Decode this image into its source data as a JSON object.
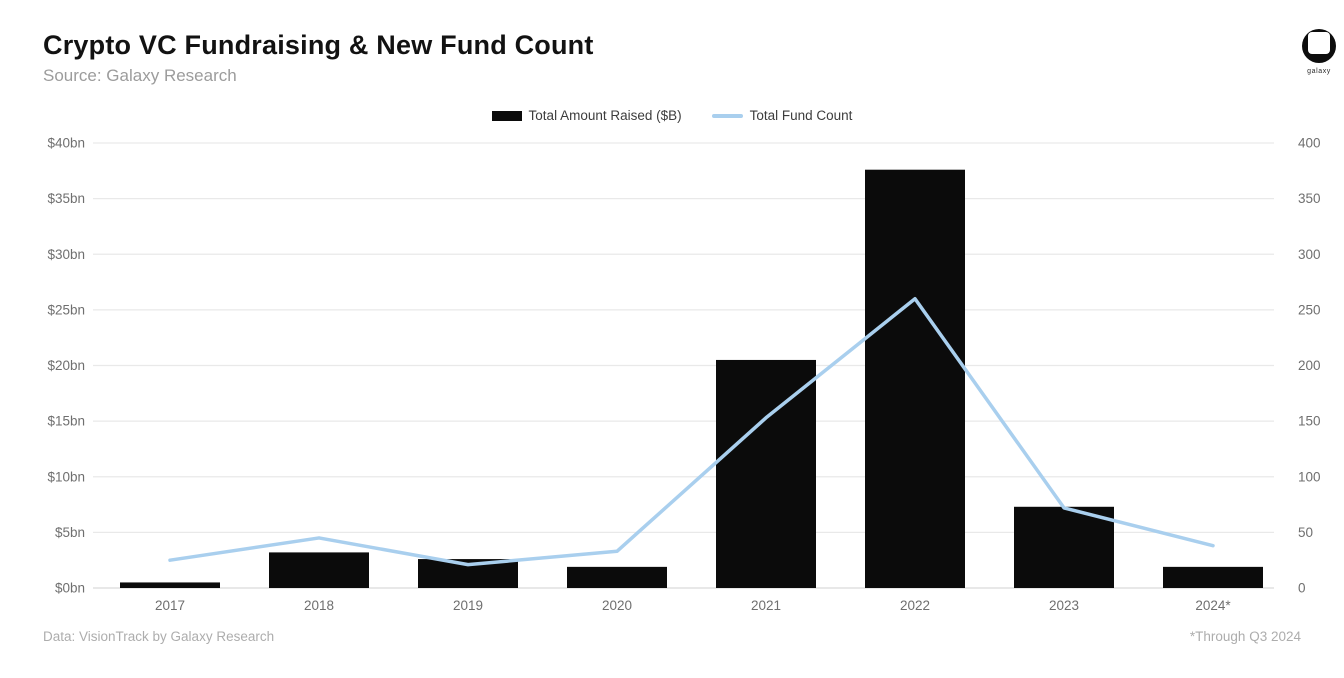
{
  "header": {
    "title": "Crypto VC Fundraising & New Fund Count",
    "subtitle": "Source: Galaxy Research"
  },
  "logo": {
    "label": "galaxy"
  },
  "legend": {
    "bar_label": "Total Amount Raised ($B)",
    "line_label": "Total Fund Count"
  },
  "footer": {
    "left": "Data: VisionTrack by Galaxy Research",
    "right": "*Through Q3 2024"
  },
  "chart_data": {
    "type": "bar+line",
    "title": "Crypto VC Fundraising & New Fund Count",
    "categories": [
      "2017",
      "2018",
      "2019",
      "2020",
      "2021",
      "2022",
      "2023",
      "2024*"
    ],
    "series": [
      {
        "name": "Total Amount Raised ($B)",
        "type": "bar",
        "axis": "left",
        "color": "#0b0b0b",
        "values": [
          0.5,
          3.2,
          2.6,
          1.9,
          20.5,
          37.6,
          7.3,
          1.9
        ]
      },
      {
        "name": "Total Fund Count",
        "type": "line",
        "axis": "right",
        "color": "#a9cfee",
        "values": [
          25,
          45,
          21,
          33,
          153,
          260,
          72,
          38
        ]
      }
    ],
    "left_axis": {
      "range": [
        0,
        40
      ],
      "ticks": [
        "$0bn",
        "$5bn",
        "$10bn",
        "$15bn",
        "$20bn",
        "$25bn",
        "$30bn",
        "$35bn",
        "$40bn"
      ]
    },
    "right_axis": {
      "range": [
        0,
        400
      ],
      "ticks": [
        "0",
        "50",
        "100",
        "150",
        "200",
        "250",
        "300",
        "350",
        "400"
      ]
    },
    "grid": "horizontal",
    "legend_position": "top-center",
    "colors": {
      "grid_line": "#e9e9e9",
      "baseline": "#d9d9d9",
      "axis_text": "#6f6f6f",
      "legend_text": "#3d3d3d"
    }
  }
}
